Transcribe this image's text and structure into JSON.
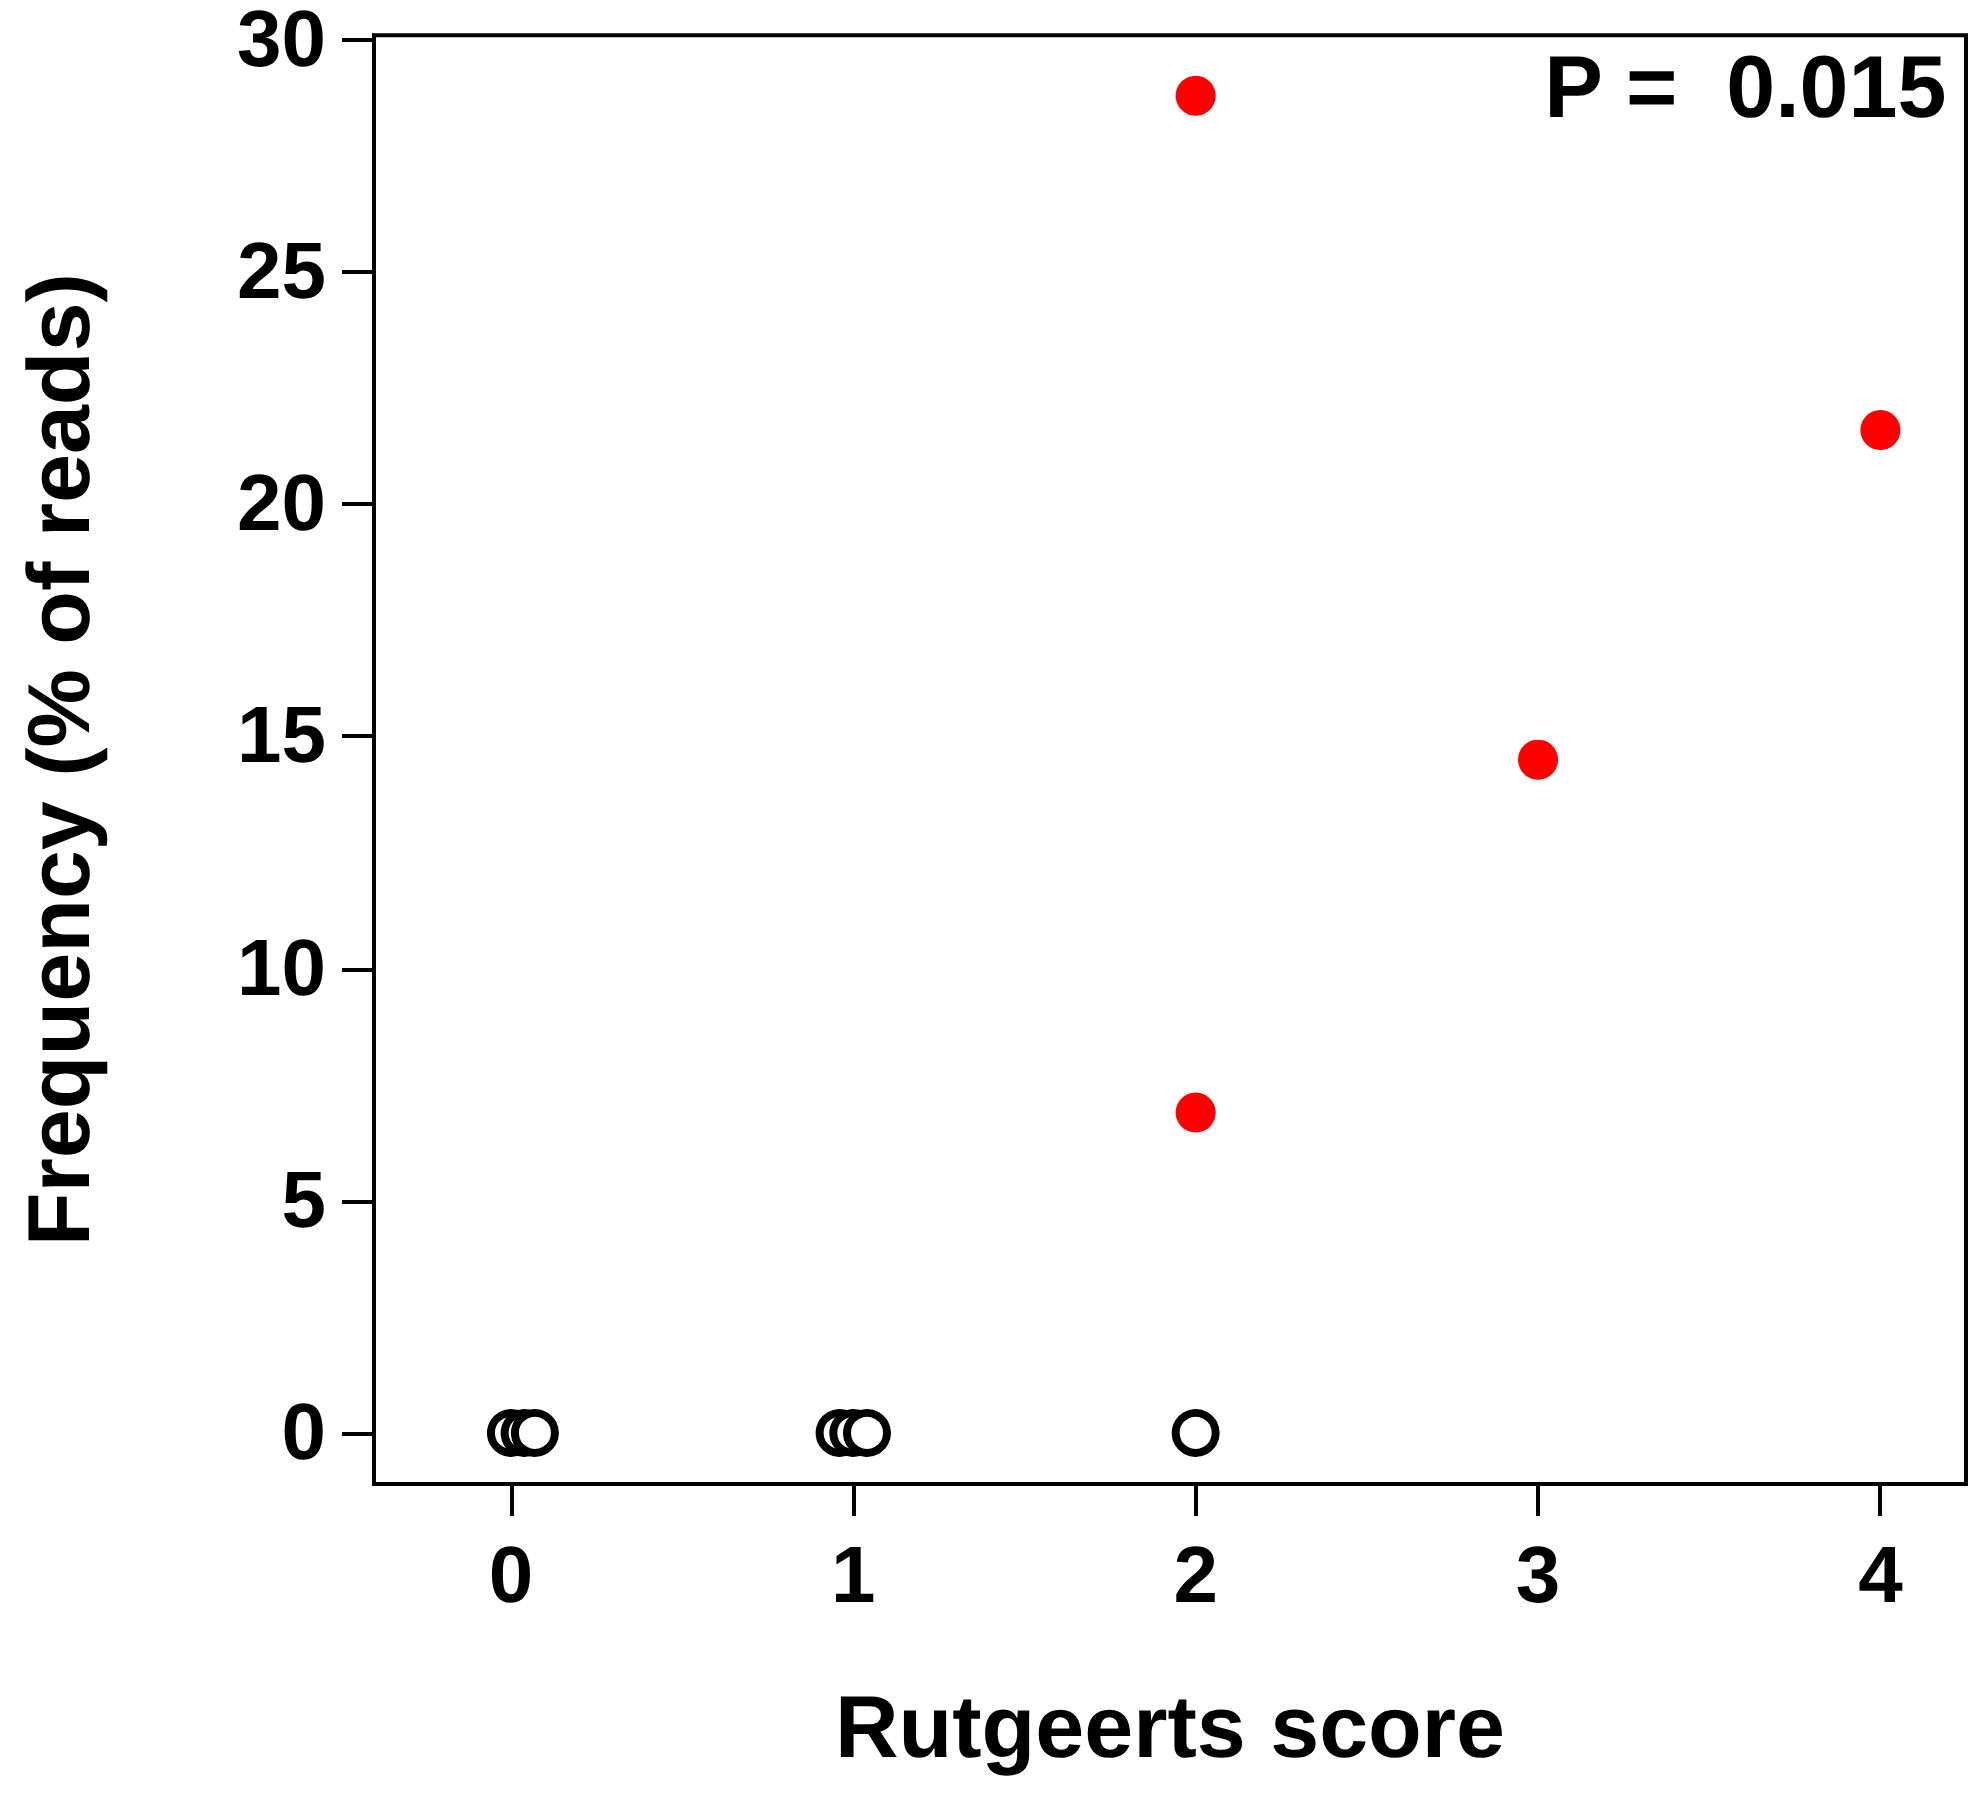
{
  "chart_data": {
    "type": "scatter",
    "xlabel": "Rutgeerts score",
    "ylabel": "Frequency (% of reads)",
    "annotations": [
      "P =  0.015"
    ],
    "xlim": [
      -0.4,
      4.25
    ],
    "xticks": [
      0,
      1,
      2,
      3,
      4
    ],
    "ylim": [
      -1.1,
      30.1
    ],
    "yticks": [
      0,
      5,
      10,
      15,
      20,
      25,
      30
    ],
    "marker": "circle",
    "series": [
      {
        "color": "#000000",
        "x": [
          0,
          0.04,
          0.07,
          0.96,
          1.0,
          1.04,
          2
        ],
        "values": [
          0,
          0,
          0,
          0,
          0,
          0,
          0
        ]
      },
      {
        "color": "#ff0000",
        "x": [
          2,
          2,
          3,
          4
        ],
        "values": [
          28.8,
          6.9,
          14.5,
          21.6
        ]
      }
    ]
  }
}
